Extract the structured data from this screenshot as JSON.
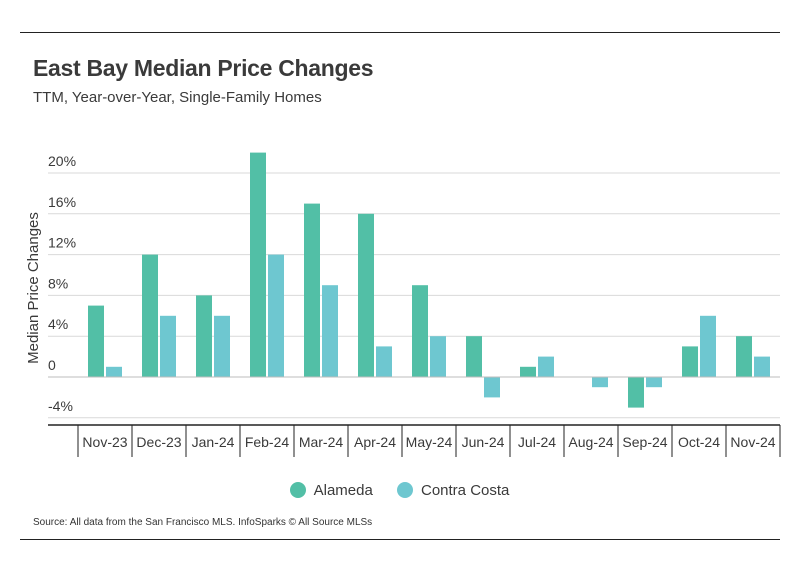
{
  "header": {
    "title": "East Bay Median Price Changes",
    "subtitle": "TTM, Year-over-Year, Single-Family Homes"
  },
  "colors": {
    "alameda": "#52bfa6",
    "contra_costa": "#6ec7d0",
    "grid": "#d9d9d9",
    "axis": "#222222"
  },
  "legend": [
    {
      "label": "Alameda",
      "color": "#52bfa6"
    },
    {
      "label": "Contra Costa",
      "color": "#6ec7d0"
    }
  ],
  "footer": {
    "source": "Source:  All data from the San Francisco MLS. InfoSparks © All Source MLSs"
  },
  "chart_data": {
    "type": "bar",
    "title": "East Bay Median Price Changes",
    "subtitle": "TTM, Year-over-Year, Single-Family Homes",
    "xlabel": "",
    "ylabel": "Median Price Changes",
    "ylim": [
      -4,
      22
    ],
    "yticks": [
      -4,
      0,
      4,
      8,
      12,
      16,
      20
    ],
    "ytick_labels": [
      "-4%",
      "0",
      "4%",
      "8%",
      "12%",
      "16%",
      "20%"
    ],
    "grid": true,
    "legend_position": "bottom-center",
    "categories": [
      "Nov-23",
      "Dec-23",
      "Jan-24",
      "Feb-24",
      "Mar-24",
      "Apr-24",
      "May-24",
      "Jun-24",
      "Jul-24",
      "Aug-24",
      "Sep-24",
      "Oct-24",
      "Nov-24"
    ],
    "series": [
      {
        "name": "Alameda",
        "values": [
          7,
          12,
          8,
          22,
          17,
          16,
          9,
          4,
          1,
          0,
          -3,
          3,
          4
        ]
      },
      {
        "name": "Contra Costa",
        "values": [
          1,
          6,
          6,
          12,
          9,
          3,
          4,
          -2,
          2,
          -1,
          -1,
          6,
          2
        ]
      }
    ]
  }
}
